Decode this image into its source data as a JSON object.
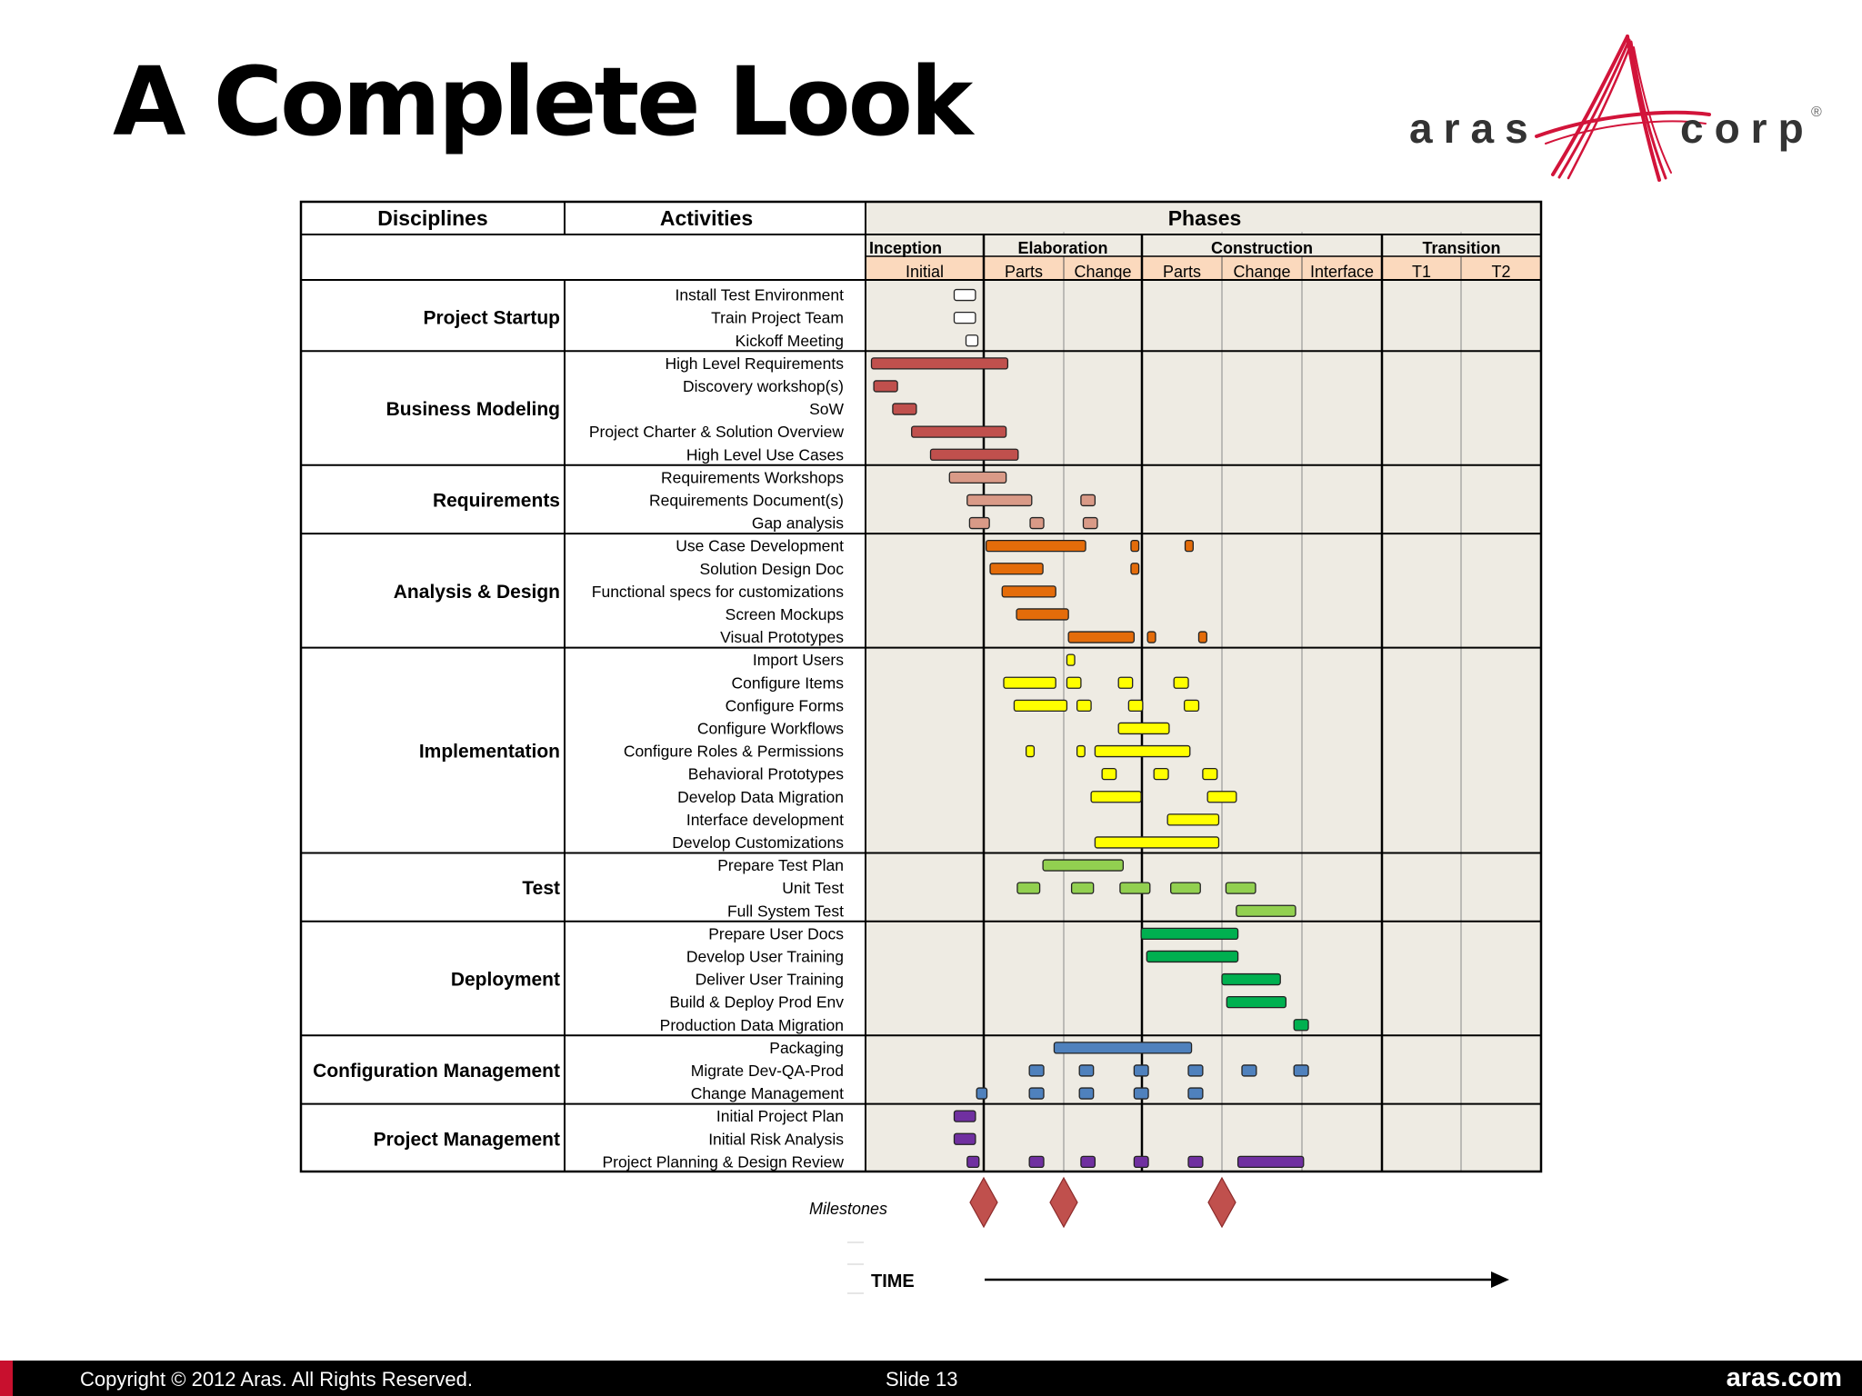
{
  "slide": {
    "title": "A Complete Look",
    "logo": {
      "left": "aras",
      "right": "corp",
      "mark": "®"
    },
    "footer": {
      "copyright": "Copyright © 2012 Aras.  All Rights Reserved.",
      "slide": "Slide 13",
      "site": "aras.com"
    }
  },
  "colors": {
    "accent": "#c8102e",
    "phases_bg": "#eeebe3",
    "header_bg": "#fbd9bd"
  },
  "chart_data": {
    "type": "gantt",
    "headers": {
      "disciplines": "Disciplines",
      "activities": "Activities",
      "phases": "Phases"
    },
    "phases": [
      {
        "name": "Inception",
        "subs": [
          "Initial"
        ]
      },
      {
        "name": "Elaboration",
        "subs": [
          "Parts",
          "Change"
        ]
      },
      {
        "name": "Construction",
        "subs": [
          "Parts",
          "Change",
          "Interface"
        ]
      },
      {
        "name": "Transition",
        "subs": [
          "T1",
          "T2"
        ]
      }
    ],
    "disciplines": [
      {
        "name": "Project Startup",
        "color": "#ffffff",
        "activities": [
          {
            "name": "Install Test Environment",
            "bars": [
              [
                0.75,
                0.93
              ]
            ]
          },
          {
            "name": "Train Project Team",
            "bars": [
              [
                0.75,
                0.93
              ]
            ]
          },
          {
            "name": "Kickoff Meeting",
            "bars": [
              [
                0.85,
                0.95
              ]
            ]
          }
        ]
      },
      {
        "name": "Business Modeling",
        "color": "#c0504d",
        "activities": [
          {
            "name": "High Level Requirements",
            "bars": [
              [
                0.05,
                1.3
              ]
            ]
          },
          {
            "name": "Discovery workshop(s)",
            "bars": [
              [
                0.07,
                0.27
              ]
            ]
          },
          {
            "name": "SoW",
            "bars": [
              [
                0.23,
                0.43
              ]
            ]
          },
          {
            "name": "Project Charter & Solution Overview",
            "bars": [
              [
                0.39,
                1.28
              ]
            ]
          },
          {
            "name": "High Level Use Cases",
            "bars": [
              [
                0.55,
                1.43
              ]
            ]
          }
        ]
      },
      {
        "name": "Requirements",
        "color": "#d99a87",
        "activities": [
          {
            "name": "Requirements Workshops",
            "bars": [
              [
                0.71,
                1.28
              ]
            ]
          },
          {
            "name": "Requirements Document(s)",
            "bars": [
              [
                0.86,
                1.6
              ],
              [
                2.22,
                2.4
              ]
            ]
          },
          {
            "name": "Gap analysis",
            "bars": [
              [
                0.88,
                1.07
              ],
              [
                1.58,
                1.75
              ],
              [
                2.25,
                2.43
              ]
            ]
          }
        ]
      },
      {
        "name": "Analysis & Design",
        "color": "#e46c0a",
        "activities": [
          {
            "name": "Use Case Development",
            "bars": [
              [
                1.03,
                2.28
              ],
              [
                2.86,
                2.96
              ],
              [
                3.54,
                3.64
              ]
            ]
          },
          {
            "name": "Solution Design Doc",
            "bars": [
              [
                1.08,
                1.74
              ],
              [
                2.86,
                2.96
              ]
            ]
          },
          {
            "name": "Functional specs for customizations",
            "bars": [
              [
                1.23,
                1.9
              ]
            ]
          },
          {
            "name": "Screen Mockups",
            "bars": [
              [
                1.41,
                2.06
              ]
            ]
          },
          {
            "name": "Visual Prototypes",
            "bars": [
              [
                2.06,
                2.9
              ],
              [
                3.07,
                3.17
              ],
              [
                3.71,
                3.81
              ]
            ]
          }
        ]
      },
      {
        "name": "Implementation",
        "color": "#ffff00",
        "activities": [
          {
            "name": "Import Users",
            "bars": [
              [
                2.04,
                2.14
              ]
            ]
          },
          {
            "name": "Configure Items",
            "bars": [
              [
                1.25,
                1.9
              ],
              [
                2.04,
                2.22
              ],
              [
                2.7,
                2.88
              ],
              [
                3.4,
                3.58
              ]
            ]
          },
          {
            "name": "Configure Forms",
            "bars": [
              [
                1.38,
                2.04
              ],
              [
                2.17,
                2.35
              ],
              [
                2.83,
                3.01
              ],
              [
                3.53,
                3.71
              ]
            ]
          },
          {
            "name": "Configure Workflows",
            "bars": [
              [
                2.7,
                3.34
              ]
            ]
          },
          {
            "name": "Configure Roles & Permissions",
            "bars": [
              [
                1.53,
                1.63
              ],
              [
                2.17,
                2.27
              ],
              [
                2.4,
                3.6
              ]
            ]
          },
          {
            "name": "Behavioral Prototypes",
            "bars": [
              [
                2.49,
                2.67
              ],
              [
                3.15,
                3.33
              ],
              [
                3.76,
                3.94
              ]
            ]
          },
          {
            "name": "Develop Data Migration",
            "bars": [
              [
                2.35,
                2.99
              ],
              [
                3.82,
                4.18
              ]
            ]
          },
          {
            "name": "Interface development",
            "bars": [
              [
                3.32,
                3.96
              ]
            ]
          },
          {
            "name": "Develop Customizations",
            "bars": [
              [
                2.4,
                3.96
              ]
            ]
          }
        ]
      },
      {
        "name": "Test",
        "color": "#92d050",
        "activities": [
          {
            "name": "Prepare Test Plan",
            "bars": [
              [
                1.74,
                2.76
              ]
            ]
          },
          {
            "name": "Unit Test",
            "bars": [
              [
                1.42,
                1.7
              ],
              [
                2.1,
                2.38
              ],
              [
                2.72,
                3.1
              ],
              [
                3.36,
                3.73
              ],
              [
                4.05,
                4.42
              ]
            ]
          },
          {
            "name": "Full System Test",
            "bars": [
              [
                4.18,
                4.92
              ]
            ]
          }
        ]
      },
      {
        "name": "Deployment",
        "color": "#00b050",
        "activities": [
          {
            "name": "Prepare User Docs",
            "bars": [
              [
                2.99,
                4.2
              ]
            ]
          },
          {
            "name": "Develop User Training",
            "bars": [
              [
                3.06,
                4.2
              ]
            ]
          },
          {
            "name": "Deliver User Training",
            "bars": [
              [
                4.0,
                4.73
              ]
            ]
          },
          {
            "name": "Build & Deploy Prod Env",
            "bars": [
              [
                4.06,
                4.8
              ]
            ]
          },
          {
            "name": "Production Data Migration",
            "bars": [
              [
                4.9,
                5.08
              ]
            ]
          }
        ]
      },
      {
        "name": "Configuration Management",
        "color": "#4f81bd",
        "activities": [
          {
            "name": "Packaging",
            "bars": [
              [
                1.88,
                3.62
              ]
            ]
          },
          {
            "name": "Migrate Dev-QA-Prod",
            "bars": [
              [
                1.57,
                1.75
              ],
              [
                2.2,
                2.38
              ],
              [
                2.9,
                3.08
              ],
              [
                3.58,
                3.76
              ],
              [
                4.25,
                4.43
              ],
              [
                4.9,
                5.08
              ]
            ]
          },
          {
            "name": "Change Management",
            "bars": [
              [
                0.94,
                1.04
              ],
              [
                1.57,
                1.75
              ],
              [
                2.2,
                2.38
              ],
              [
                2.9,
                3.08
              ],
              [
                3.58,
                3.76
              ]
            ]
          }
        ]
      },
      {
        "name": "Project Management",
        "color": "#7030a0",
        "activities": [
          {
            "name": "Initial Project Plan",
            "bars": [
              [
                0.75,
                0.93
              ]
            ]
          },
          {
            "name": "Initial Risk Analysis",
            "bars": [
              [
                0.75,
                0.93
              ]
            ]
          },
          {
            "name": "Project Planning & Design Review",
            "bars": [
              [
                0.86,
                0.96
              ],
              [
                1.57,
                1.75
              ],
              [
                2.22,
                2.4
              ],
              [
                2.9,
                3.08
              ],
              [
                3.58,
                3.76
              ],
              [
                4.2,
                5.02
              ]
            ]
          }
        ]
      }
    ],
    "milestones": {
      "label": "Milestones",
      "positions": [
        1.0,
        2.0,
        4.0
      ],
      "color": "#c0504d"
    },
    "time_label": "TIME"
  }
}
